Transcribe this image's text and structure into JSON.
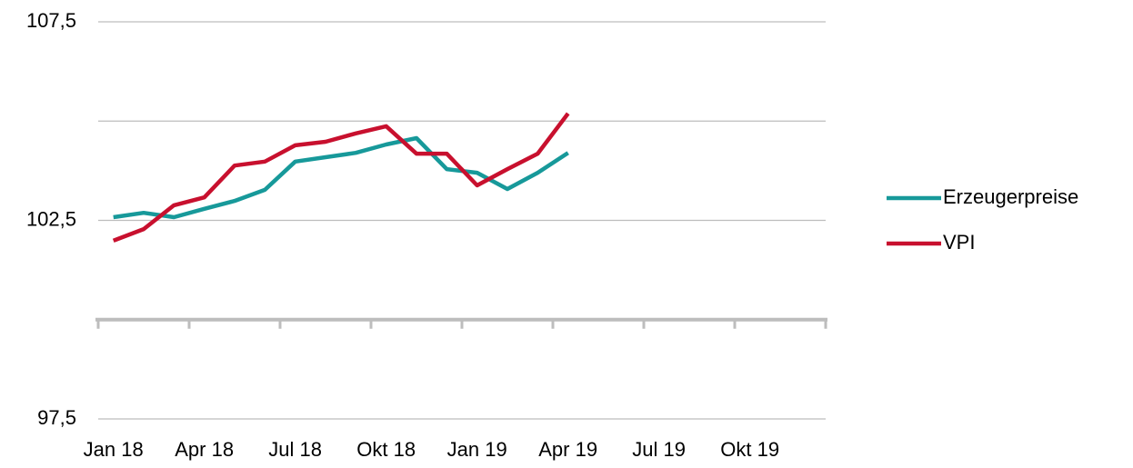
{
  "chart_data": {
    "type": "line",
    "categories": [
      "Jan 18",
      null,
      null,
      "Apr 18",
      null,
      null,
      "Jul 18",
      null,
      null,
      "Okt 18",
      null,
      null,
      "Jan 19",
      null,
      null,
      "Apr 19",
      null,
      null,
      "Jul 19",
      null,
      null,
      "Okt 19",
      null,
      null
    ],
    "series": [
      {
        "name": "Erzeugerpreise",
        "color": "#17999a",
        "values": [
          102.58,
          102.69,
          102.58,
          102.79,
          102.99,
          103.27,
          103.98,
          104.09,
          104.2,
          104.41,
          104.57,
          103.79,
          103.7,
          103.29,
          103.7,
          104.2,
          null,
          null,
          null,
          null,
          null,
          null,
          null,
          null
        ]
      },
      {
        "name": "VPI",
        "color": "#c8102e",
        "values": [
          101.99,
          102.28,
          102.88,
          103.08,
          103.88,
          103.98,
          104.39,
          104.48,
          104.69,
          104.87,
          104.18,
          104.18,
          103.38,
          103.79,
          104.18,
          105.19,
          null,
          null,
          null,
          null,
          null,
          null,
          null,
          null
        ]
      }
    ],
    "ylim": [
      97.5,
      107.5
    ],
    "yticks": [
      {
        "value": 97.5,
        "label": "97,5"
      },
      {
        "value": 100,
        "label": null
      },
      {
        "value": 102.5,
        "label": "102,5"
      },
      {
        "value": 105,
        "label": null
      },
      {
        "value": 107.5,
        "label": "107,5"
      }
    ],
    "xaxis_crosses": 100,
    "grid": true,
    "legend": "right"
  }
}
